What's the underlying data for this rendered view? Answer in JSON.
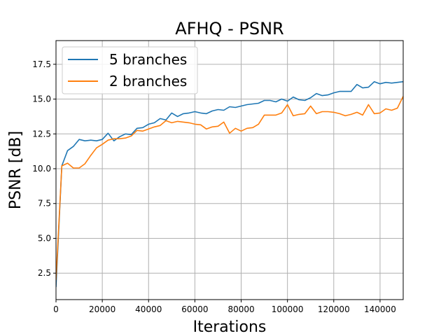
{
  "chart_data": {
    "type": "line",
    "title": "AFHQ - PSNR",
    "xlabel": "Iterations",
    "ylabel": "PSNR [dB]",
    "xlim": [
      0,
      150000
    ],
    "ylim": [
      0.6,
      19.2
    ],
    "xticks": [
      0,
      20000,
      40000,
      60000,
      80000,
      100000,
      120000,
      140000
    ],
    "yticks": [
      2.5,
      5.0,
      7.5,
      10.0,
      12.5,
      15.0,
      17.5
    ],
    "xtick_labels": [
      "0",
      "20000",
      "40000",
      "60000",
      "80000",
      "100000",
      "120000",
      "140000"
    ],
    "ytick_labels": [
      "2.5",
      "5.0",
      "7.5",
      "10.0",
      "12.5",
      "15.0",
      "17.5"
    ],
    "grid": true,
    "legend_position": "top-left",
    "x": [
      0,
      2500,
      5000,
      7500,
      10000,
      12500,
      15000,
      17500,
      20000,
      22500,
      25000,
      27500,
      30000,
      32500,
      35000,
      37500,
      40000,
      42500,
      45000,
      47500,
      50000,
      52500,
      55000,
      57500,
      60000,
      62500,
      65000,
      67500,
      70000,
      72500,
      75000,
      77500,
      80000,
      82500,
      85000,
      87500,
      90000,
      92500,
      95000,
      97500,
      100000,
      102500,
      105000,
      107500,
      110000,
      112500,
      115000,
      117500,
      120000,
      122500,
      125000,
      127500,
      130000,
      132500,
      135000,
      137500,
      140000,
      142500,
      145000,
      147500,
      150000
    ],
    "series": [
      {
        "name": "5 branches",
        "color": "#1f77b4",
        "values": [
          1.5,
          10.2,
          11.3,
          11.6,
          12.1,
          12.0,
          12.05,
          12.0,
          12.1,
          12.55,
          12.0,
          12.3,
          12.5,
          12.45,
          12.9,
          12.95,
          13.2,
          13.3,
          13.6,
          13.5,
          14.0,
          13.75,
          13.95,
          14.0,
          14.1,
          14.0,
          13.95,
          14.15,
          14.25,
          14.2,
          14.45,
          14.4,
          14.5,
          14.6,
          14.65,
          14.7,
          14.9,
          14.9,
          14.8,
          15.0,
          14.85,
          15.15,
          14.95,
          14.9,
          15.1,
          15.4,
          15.25,
          15.3,
          15.45,
          15.55,
          15.55,
          15.55,
          16.05,
          15.8,
          15.85,
          16.25,
          16.1,
          16.2,
          16.15,
          16.2,
          16.25
        ]
      },
      {
        "name": "2 branches",
        "color": "#ff7f0e",
        "values": [
          2.0,
          10.2,
          10.4,
          10.05,
          10.05,
          10.35,
          10.95,
          11.5,
          11.75,
          12.05,
          12.15,
          12.15,
          12.2,
          12.35,
          12.75,
          12.7,
          12.85,
          13.0,
          13.1,
          13.45,
          13.3,
          13.4,
          13.35,
          13.3,
          13.2,
          13.15,
          12.85,
          13.0,
          13.05,
          13.35,
          12.55,
          12.9,
          12.7,
          12.9,
          12.95,
          13.2,
          13.85,
          13.85,
          13.85,
          14.0,
          14.6,
          13.8,
          13.9,
          13.95,
          14.5,
          13.95,
          14.1,
          14.1,
          14.05,
          13.95,
          13.8,
          13.9,
          14.05,
          13.85,
          14.6,
          13.95,
          14.0,
          14.3,
          14.2,
          14.35,
          15.2
        ]
      }
    ]
  }
}
